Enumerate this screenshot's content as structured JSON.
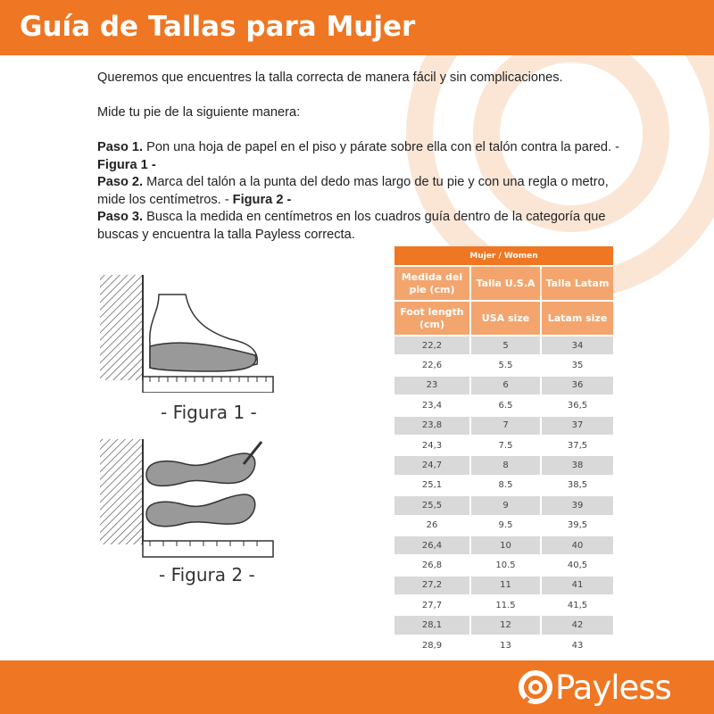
{
  "header": {
    "title": "Guía de Tallas para Mujer"
  },
  "intro": {
    "line1": "Queremos que encuentres la talla correcta de manera fácil y sin complicaciones.",
    "line2": "Mide tu pie de la siguiente manera:",
    "steps": [
      {
        "label": "Paso 1.",
        "text": " Pon una hoja de papel en el piso y párate sobre ella con el talón contra la pared. - ",
        "ref": "Figura 1",
        "end": " -"
      },
      {
        "label": "Paso 2.",
        "text": " Marca del talón a la punta del dedo mas largo de tu pie y con una regla o metro, mide los centímetros. - ",
        "ref": "Figura 2",
        "end": " -"
      },
      {
        "label": "Paso 3.",
        "text": " Busca la medida en centímetros en los cuadros guía dentro de la categoría que buscas y encuentra la talla Payless correcta.",
        "ref": "",
        "end": ""
      }
    ]
  },
  "figures": {
    "fig1": "- Figura 1 -",
    "fig2": "- Figura 2 -"
  },
  "table": {
    "title": "Mujer / Women",
    "headers_es": [
      "Medida del pie (cm)",
      "Talla U.S.A",
      "Talla Latam"
    ],
    "headers_en": [
      "Foot length (cm)",
      "USA size",
      "Latam size"
    ],
    "rows": [
      [
        "22,2",
        "5",
        "34"
      ],
      [
        "22,6",
        "5.5",
        "35"
      ],
      [
        "23",
        "6",
        "36"
      ],
      [
        "23,4",
        "6.5",
        "36,5"
      ],
      [
        "23,8",
        "7",
        "37"
      ],
      [
        "24,3",
        "7.5",
        "37,5"
      ],
      [
        "24,7",
        "8",
        "38"
      ],
      [
        "25,1",
        "8.5",
        "38,5"
      ],
      [
        "25,5",
        "9",
        "39"
      ],
      [
        "26",
        "9.5",
        "39,5"
      ],
      [
        "26,4",
        "10",
        "40"
      ],
      [
        "26,8",
        "10.5",
        "40,5"
      ],
      [
        "27,2",
        "11",
        "41"
      ],
      [
        "27,7",
        "11.5",
        "41,5"
      ],
      [
        "28,1",
        "12",
        "42"
      ],
      [
        "28,9",
        "13",
        "43"
      ]
    ]
  },
  "footer": {
    "brand": "Payless"
  },
  "colors": {
    "brand": "#ef7622",
    "header_cell": "#f3a56d",
    "row_alt": "#d9d9d9"
  }
}
